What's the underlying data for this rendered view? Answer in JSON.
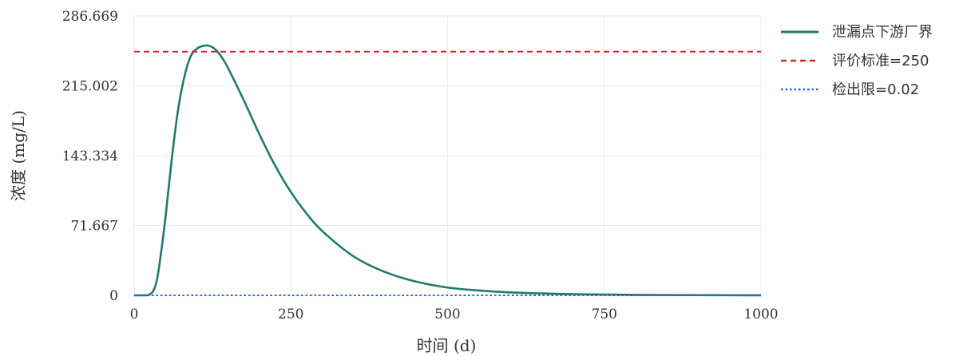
{
  "chart_data": {
    "type": "line",
    "xlabel": "时间 (d)",
    "ylabel": "浓度 (mg/L)",
    "xlim": [
      0,
      1000
    ],
    "ylim": [
      0,
      286.669
    ],
    "xticks": [
      "0",
      "250",
      "500",
      "750",
      "1000"
    ],
    "yticks": [
      "0",
      "71.667",
      "143.334",
      "215.002",
      "286.669"
    ],
    "grid": true,
    "legend_position": "right",
    "series": [
      {
        "name": "泄漏点下游厂界",
        "style": "solid",
        "color": "#1e7b6b",
        "x": [
          0,
          20,
          25,
          30,
          35,
          40,
          50,
          60,
          70,
          80,
          90,
          100,
          110,
          120,
          130,
          140,
          150,
          175,
          200,
          225,
          250,
          275,
          300,
          350,
          400,
          450,
          500,
          550,
          600,
          650,
          700,
          750,
          800,
          850,
          900,
          950,
          1000
        ],
        "y": [
          0,
          0,
          1,
          4,
          12,
          30,
          80,
          140,
          190,
          224,
          245,
          253,
          256,
          256,
          252,
          244,
          233,
          200,
          165,
          133,
          106,
          84,
          66,
          40,
          24,
          14,
          8,
          5,
          3,
          2,
          1.2,
          0.8,
          0.5,
          0.3,
          0.2,
          0.1,
          0.05
        ]
      },
      {
        "name": "评价标准=250",
        "style": "dashed",
        "color": "#d62728",
        "x": [
          0,
          1000
        ],
        "y": [
          250,
          250
        ]
      },
      {
        "name": "检出限=0.02",
        "style": "dotted",
        "color": "#2f63d6",
        "x": [
          0,
          1000
        ],
        "y": [
          0.02,
          0.02
        ]
      }
    ]
  }
}
